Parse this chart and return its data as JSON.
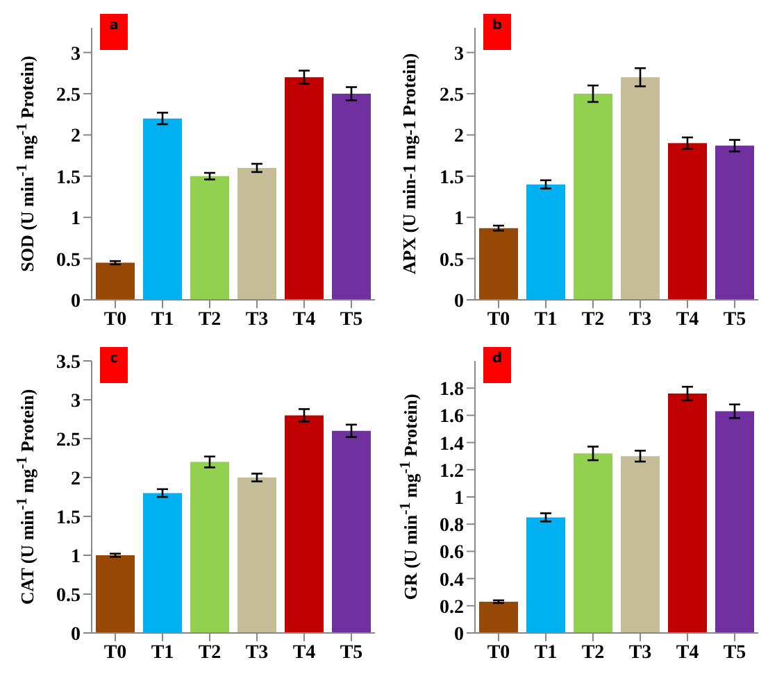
{
  "chart_data": [
    {
      "type": "bar",
      "annotations": [
        "a"
      ],
      "ylabel": "SOD (U min$^{-1}$ mg$^{-1}$ Protein)",
      "categories": [
        "T0",
        "T1",
        "T2",
        "T3",
        "T4",
        "T5"
      ],
      "values": [
        0.45,
        2.2,
        1.5,
        1.6,
        2.7,
        2.5
      ],
      "errors": [
        0.02,
        0.07,
        0.04,
        0.05,
        0.08,
        0.08
      ],
      "colors": [
        "#974706",
        "#00b0f0",
        "#92d050",
        "#c4bd97",
        "#c00000",
        "#7030a0"
      ],
      "ylim": [
        0,
        3.3
      ],
      "yticks": [
        0,
        0.5,
        1,
        1.5,
        2,
        2.5,
        3
      ]
    },
    {
      "type": "bar",
      "annotations": [
        "b"
      ],
      "ylabel": "APX (U min-1 mg-1 Protein)",
      "categories": [
        "T0",
        "T1",
        "T2",
        "T3",
        "T4",
        "T5"
      ],
      "values": [
        0.87,
        1.4,
        2.5,
        2.7,
        1.9,
        1.87
      ],
      "errors": [
        0.03,
        0.05,
        0.1,
        0.11,
        0.07,
        0.07
      ],
      "colors": [
        "#974706",
        "#00b0f0",
        "#92d050",
        "#c4bd97",
        "#c00000",
        "#7030a0"
      ],
      "ylim": [
        0,
        3.3
      ],
      "yticks": [
        0,
        0.5,
        1,
        1.5,
        2,
        2.5,
        3
      ]
    },
    {
      "type": "bar",
      "annotations": [
        "c"
      ],
      "ylabel": "CAT (U min$^{-1}$ mg$^{-1}$ Protein)",
      "categories": [
        "T0",
        "T1",
        "T2",
        "T3",
        "T4",
        "T5"
      ],
      "values": [
        1.0,
        1.8,
        2.2,
        2.0,
        2.8,
        2.6
      ],
      "errors": [
        0.02,
        0.05,
        0.07,
        0.05,
        0.08,
        0.08
      ],
      "colors": [
        "#974706",
        "#00b0f0",
        "#92d050",
        "#c4bd97",
        "#c00000",
        "#7030a0"
      ],
      "ylim": [
        0,
        3.5
      ],
      "yticks": [
        0,
        0.5,
        1,
        1.5,
        2,
        2.5,
        3,
        3.5
      ]
    },
    {
      "type": "bar",
      "annotations": [
        "d"
      ],
      "ylabel": "GR (U min$^{-1}$ mg$^{-1}$ Protein)",
      "categories": [
        "T0",
        "T1",
        "T2",
        "T3",
        "T4",
        "T5"
      ],
      "values": [
        0.23,
        0.85,
        1.32,
        1.3,
        1.76,
        1.63
      ],
      "errors": [
        0.01,
        0.03,
        0.05,
        0.04,
        0.05,
        0.05
      ],
      "colors": [
        "#974706",
        "#00b0f0",
        "#92d050",
        "#c4bd97",
        "#c00000",
        "#7030a0"
      ],
      "ylim": [
        0,
        2
      ],
      "yticks": [
        0,
        0.2,
        0.4,
        0.6,
        0.8,
        1,
        1.2,
        1.4,
        1.6,
        1.8
      ]
    }
  ]
}
